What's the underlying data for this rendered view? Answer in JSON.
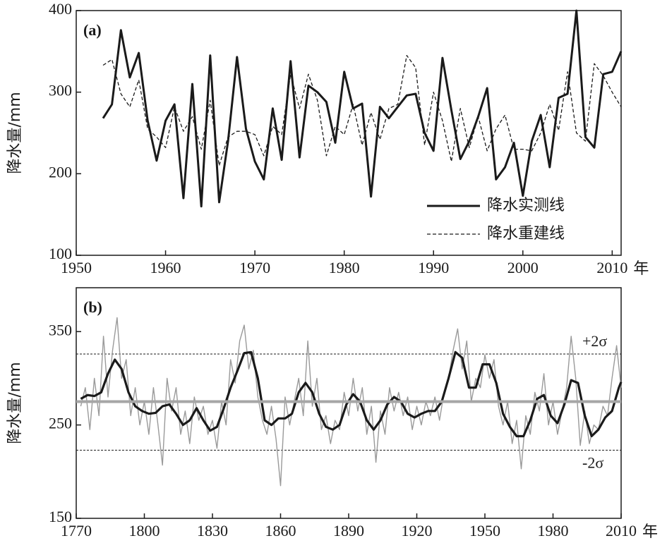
{
  "chart_data": [
    {
      "type": "line",
      "title": "(a)",
      "y_label": "降水量/mm",
      "x_label": "年",
      "xlim": [
        1950,
        2011
      ],
      "xticks": [
        1950,
        1960,
        1970,
        1980,
        1990,
        2000,
        2010
      ],
      "ylim": [
        100,
        400
      ],
      "yticks": [
        100,
        200,
        300,
        400
      ],
      "x": [
        1953,
        1954,
        1955,
        1956,
        1957,
        1958,
        1959,
        1960,
        1961,
        1962,
        1963,
        1964,
        1965,
        1966,
        1967,
        1968,
        1969,
        1970,
        1971,
        1972,
        1973,
        1974,
        1975,
        1976,
        1977,
        1978,
        1979,
        1980,
        1981,
        1982,
        1983,
        1984,
        1985,
        1986,
        1987,
        1988,
        1989,
        1990,
        1991,
        1992,
        1993,
        1994,
        1995,
        1996,
        1997,
        1998,
        1999,
        2000,
        2001,
        2002,
        2003,
        2004,
        2005,
        2006,
        2007,
        2008,
        2009,
        2010,
        2011
      ],
      "series": [
        {
          "name": "降水实测线",
          "color": "#1a1a1a",
          "linestyle": "solid",
          "values": [
            268,
            285,
            376,
            318,
            348,
            265,
            216,
            265,
            285,
            170,
            310,
            160,
            345,
            165,
            240,
            343,
            255,
            215,
            193,
            280,
            217,
            338,
            220,
            308,
            300,
            288,
            238,
            325,
            280,
            286,
            172,
            282,
            268,
            282,
            296,
            298,
            250,
            228,
            342,
            278,
            218,
            240,
            270,
            305,
            193,
            208,
            238,
            173,
            240,
            272,
            208,
            293,
            298,
            400,
            245,
            232,
            322,
            325,
            350
          ]
        },
        {
          "name": "降水重建线",
          "color": "#1a1a1a",
          "linestyle": "dashed",
          "values": [
            333,
            340,
            298,
            282,
            315,
            255,
            245,
            232,
            282,
            252,
            270,
            230,
            290,
            210,
            245,
            252,
            252,
            248,
            222,
            258,
            248,
            322,
            280,
            322,
            290,
            222,
            258,
            248,
            285,
            235,
            275,
            242,
            280,
            285,
            345,
            330,
            235,
            300,
            265,
            215,
            280,
            232,
            270,
            228,
            255,
            272,
            230,
            230,
            228,
            250,
            285,
            253,
            325,
            250,
            240,
            335,
            320,
            300,
            282
          ]
        }
      ]
    },
    {
      "type": "line",
      "title": "(b)",
      "y_label": "降水量/mm",
      "x_label": "年",
      "xlim": [
        1770,
        2010
      ],
      "xticks": [
        1770,
        1800,
        1830,
        1860,
        1890,
        1920,
        1950,
        1980,
        2010
      ],
      "ylim": [
        150,
        397
      ],
      "yticks": [
        150,
        250,
        350
      ],
      "mean": 275,
      "mean_color": "#a6a6a6",
      "sigma_lines": [
        {
          "value": 326,
          "label": "+2σ"
        },
        {
          "value": 223,
          "label": "-2σ"
        }
      ],
      "series": [
        {
          "color": "#9a9a9a",
          "linestyle": "solid",
          "x": [
            1772,
            1774,
            1776,
            1778,
            1780,
            1782,
            1784,
            1786,
            1788,
            1790,
            1792,
            1794,
            1796,
            1798,
            1800,
            1802,
            1804,
            1806,
            1808,
            1810,
            1812,
            1814,
            1816,
            1818,
            1820,
            1822,
            1824,
            1826,
            1828,
            1830,
            1832,
            1834,
            1836,
            1838,
            1840,
            1842,
            1844,
            1846,
            1848,
            1850,
            1852,
            1854,
            1856,
            1858,
            1860,
            1862,
            1864,
            1866,
            1868,
            1870,
            1872,
            1874,
            1876,
            1878,
            1880,
            1882,
            1884,
            1886,
            1888,
            1890,
            1892,
            1894,
            1896,
            1898,
            1900,
            1902,
            1904,
            1906,
            1908,
            1910,
            1912,
            1914,
            1916,
            1918,
            1920,
            1922,
            1924,
            1926,
            1928,
            1930,
            1932,
            1934,
            1936,
            1938,
            1940,
            1942,
            1944,
            1946,
            1948,
            1950,
            1952,
            1954,
            1956,
            1958,
            1960,
            1962,
            1964,
            1966,
            1968,
            1970,
            1972,
            1974,
            1976,
            1978,
            1980,
            1982,
            1984,
            1986,
            1988,
            1990,
            1992,
            1994,
            1996,
            1998,
            2000,
            2002,
            2004,
            2006,
            2008,
            2010
          ],
          "values": [
            270,
            290,
            245,
            300,
            260,
            345,
            280,
            330,
            365,
            300,
            320,
            260,
            290,
            250,
            275,
            240,
            290,
            250,
            207,
            300,
            265,
            290,
            240,
            265,
            230,
            280,
            255,
            270,
            240,
            255,
            225,
            275,
            250,
            320,
            295,
            340,
            357,
            310,
            330,
            280,
            255,
            240,
            270,
            235,
            185,
            280,
            250,
            275,
            300,
            260,
            340,
            270,
            300,
            245,
            260,
            230,
            255,
            245,
            285,
            260,
            300,
            265,
            290,
            240,
            270,
            210,
            265,
            240,
            290,
            265,
            285,
            260,
            280,
            245,
            270,
            250,
            275,
            260,
            280,
            255,
            285,
            300,
            330,
            353,
            310,
            340,
            275,
            300,
            290,
            325,
            300,
            320,
            270,
            250,
            275,
            230,
            255,
            203,
            260,
            240,
            285,
            265,
            305,
            250,
            275,
            240,
            265,
            290,
            345,
            300,
            228,
            265,
            230,
            250,
            245,
            270,
            260,
            300,
            335,
            290
          ]
        },
        {
          "color": "#1a1a1a",
          "linestyle": "solid",
          "x": [
            1772,
            1775,
            1778,
            1781,
            1784,
            1787,
            1790,
            1793,
            1796,
            1799,
            1802,
            1805,
            1808,
            1811,
            1814,
            1817,
            1820,
            1823,
            1826,
            1829,
            1832,
            1835,
            1838,
            1841,
            1844,
            1847,
            1850,
            1853,
            1856,
            1859,
            1862,
            1865,
            1868,
            1871,
            1874,
            1877,
            1880,
            1883,
            1886,
            1889,
            1892,
            1895,
            1898,
            1901,
            1904,
            1907,
            1910,
            1913,
            1916,
            1919,
            1922,
            1925,
            1928,
            1931,
            1934,
            1937,
            1940,
            1943,
            1946,
            1949,
            1952,
            1955,
            1958,
            1961,
            1964,
            1967,
            1970,
            1973,
            1976,
            1979,
            1982,
            1985,
            1988,
            1991,
            1994,
            1997,
            2000,
            2003,
            2006,
            2009,
            2010
          ],
          "values": [
            278,
            282,
            281,
            285,
            305,
            320,
            310,
            285,
            270,
            265,
            262,
            263,
            270,
            272,
            262,
            250,
            255,
            268,
            255,
            244,
            248,
            268,
            290,
            308,
            327,
            328,
            300,
            255,
            250,
            257,
            257,
            262,
            285,
            295,
            285,
            262,
            248,
            245,
            250,
            272,
            283,
            275,
            255,
            245,
            255,
            272,
            280,
            275,
            262,
            258,
            262,
            265,
            265,
            275,
            300,
            328,
            322,
            290,
            290,
            315,
            315,
            295,
            262,
            248,
            238,
            238,
            255,
            278,
            282,
            260,
            252,
            272,
            298,
            295,
            260,
            238,
            245,
            258,
            265,
            290,
            296
          ]
        }
      ]
    }
  ]
}
